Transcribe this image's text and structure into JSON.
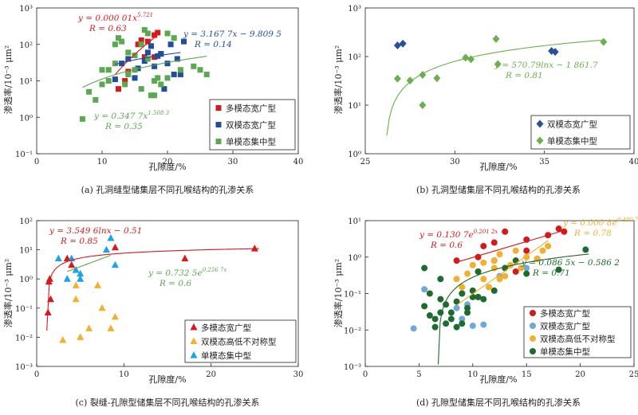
{
  "colors": {
    "red": "#d7191c",
    "blue": "#1f4e9c",
    "green": "#5aa84f",
    "diamond_blue": "#2a4f9a",
    "diamond_green": "#6ab04c",
    "orange": "#f2b02e",
    "lightblue": "#6fa8dc",
    "cyan": "#1aa3e8",
    "darkgreen": "#1e6b2e"
  },
  "chart_data": [
    {
      "id": "a",
      "type": "scatter",
      "caption": "(a) 孔洞缝型储集层不同孔喉结构的孔渗关系",
      "xlabel": "孔隙度/%",
      "ylabel": "渗透率/10⁻³ μm²",
      "xlim": [
        0,
        40
      ],
      "ylim_log10": [
        -1,
        3
      ],
      "x_ticks": [
        "0",
        "10",
        "20",
        "30",
        "40"
      ],
      "y_ticks": [
        "10⁻¹",
        "10⁰",
        "10¹",
        "10²",
        "10³"
      ],
      "legend_position": "bottom-right",
      "series": [
        {
          "name": "多模态宽广型",
          "marker": "square",
          "color_key": "red",
          "points": [
            [
              12.5,
              6
            ],
            [
              13.5,
              10
            ],
            [
              14,
              18
            ],
            [
              15.5,
              100
            ],
            [
              16,
              130
            ],
            [
              17,
              120
            ],
            [
              18,
              180
            ],
            [
              18.5,
              210
            ],
            [
              18,
              45
            ],
            [
              19,
              55
            ],
            [
              16.5,
              45
            ]
          ]
        },
        {
          "name": "双模态宽广型",
          "marker": "square",
          "color_key": "blue",
          "points": [
            [
              12,
              11
            ],
            [
              13,
              30
            ],
            [
              14,
              40
            ],
            [
              15,
              12
            ],
            [
              15.5,
              22
            ],
            [
              16.5,
              35
            ],
            [
              17,
              60
            ],
            [
              17.5,
              90
            ],
            [
              18,
              25
            ],
            [
              18.5,
              48
            ],
            [
              19,
              55
            ],
            [
              19.5,
              6
            ],
            [
              20,
              30
            ],
            [
              20.5,
              100
            ],
            [
              21,
              15
            ],
            [
              21.5,
              40
            ],
            [
              22,
              15
            ],
            [
              22.5,
              120
            ]
          ]
        },
        {
          "name": "单模态集中型",
          "marker": "square",
          "color_key": "green",
          "points": [
            [
              7,
              0.9
            ],
            [
              8,
              5
            ],
            [
              9,
              3
            ],
            [
              10,
              8
            ],
            [
              10,
              20
            ],
            [
              11,
              10
            ],
            [
              11,
              20
            ],
            [
              12,
              30
            ],
            [
              12,
              100
            ],
            [
              12.5,
              150
            ],
            [
              13,
              120
            ],
            [
              13.5,
              8
            ],
            [
              14,
              15
            ],
            [
              14,
              60
            ],
            [
              15,
              20
            ],
            [
              15,
              50
            ],
            [
              16,
              6
            ],
            [
              16,
              100
            ],
            [
              16.5,
              250
            ],
            [
              17,
              200
            ],
            [
              17,
              40
            ],
            [
              17.5,
              4
            ],
            [
              18,
              4
            ],
            [
              18,
              10
            ],
            [
              18.5,
              12
            ],
            [
              19,
              8
            ],
            [
              20,
              12
            ],
            [
              20,
              200
            ],
            [
              21,
              150
            ],
            [
              22,
              20
            ],
            [
              24,
              25
            ],
            [
              25,
              20
            ],
            [
              26,
              15
            ]
          ]
        }
      ],
      "fits": [
        {
          "color_key": "red",
          "equation": "y = 0.000 01x^5.721",
          "r_text": "R = 0.63",
          "formula": "power",
          "a": 1e-05,
          "b": 5.721,
          "x_range": [
            12,
            18
          ]
        },
        {
          "color_key": "blue",
          "equation": "y = 3.167 7x − 9.809 5",
          "r_text": "R = 0.14",
          "formula": "linear",
          "a": 3.1677,
          "b": -9.8095,
          "x_range": [
            12,
            22
          ]
        },
        {
          "color_key": "green",
          "equation": "y = 0.347 7x^1.508 3",
          "r_text": "R = 0.35",
          "formula": "power",
          "a": 0.3477,
          "b": 1.5083,
          "x_range": [
            7,
            26
          ]
        }
      ]
    },
    {
      "id": "b",
      "type": "scatter",
      "caption": "(b) 孔洞型储集层不同孔喉结构的孔渗关系",
      "xlabel": "孔隙度/%",
      "ylabel": "渗透率/10⁻³ μm²",
      "xlim": [
        25,
        40
      ],
      "ylim_log10": [
        0,
        3
      ],
      "x_ticks": [
        "25",
        "30",
        "35",
        "40"
      ],
      "y_ticks": [
        "10⁰",
        "10¹",
        "10²",
        "10³"
      ],
      "legend_position": "bottom-right",
      "series": [
        {
          "name": "双模态宽广型",
          "marker": "diamond",
          "color_key": "diamond_blue",
          "points": [
            [
              26.8,
              170
            ],
            [
              27.1,
              185
            ],
            [
              35.4,
              130
            ],
            [
              35.6,
              125
            ]
          ]
        },
        {
          "name": "单模态集中型",
          "marker": "diamond",
          "color_key": "diamond_green",
          "points": [
            [
              26.8,
              35
            ],
            [
              27.5,
              32
            ],
            [
              28.2,
              42
            ],
            [
              28.2,
              10
            ],
            [
              29,
              36
            ],
            [
              30.6,
              95
            ],
            [
              30.9,
              88
            ],
            [
              32.3,
              230
            ],
            [
              32.4,
              70
            ],
            [
              38.3,
              200
            ]
          ]
        }
      ],
      "fits": [
        {
          "color_key": "diamond_green",
          "equation": "y = 570.79lnx − 1 861.7",
          "r_text": "R = 0.81",
          "formula": "log",
          "a": 570.79,
          "b": -1861.7,
          "x_range": [
            26.2,
            38.3
          ]
        }
      ]
    },
    {
      "id": "c",
      "type": "scatter",
      "caption": "(c) 裂缝-孔隙型储集层不同孔喉结构的孔渗关系",
      "xlabel": "孔隙度/%",
      "ylabel": "渗透率/10⁻³ μm²",
      "xlim": [
        0,
        30
      ],
      "ylim_log10": [
        -3,
        2
      ],
      "x_ticks": [
        "0",
        "10",
        "20",
        "30"
      ],
      "y_ticks": [
        "10⁻³",
        "10⁻²",
        "10⁻¹",
        "10⁰",
        "10¹",
        "10²"
      ],
      "legend_position": "bottom-right",
      "series": [
        {
          "name": "多模态宽广型",
          "marker": "triangle",
          "color_key": "red",
          "points": [
            [
              1.3,
              0.07
            ],
            [
              1.4,
              0.8
            ],
            [
              1.5,
              1
            ],
            [
              1.6,
              0.2
            ],
            [
              3.5,
              5
            ],
            [
              4,
              3
            ],
            [
              9,
              12
            ],
            [
              17,
              5
            ],
            [
              25,
              11
            ]
          ]
        },
        {
          "name": "双模态高低不对称型",
          "marker": "triangle",
          "color_key": "orange",
          "points": [
            [
              3,
              0.008
            ],
            [
              4.5,
              0.2
            ],
            [
              4.5,
              0.6
            ],
            [
              5,
              0.01
            ],
            [
              6,
              0.02
            ],
            [
              7,
              0.6
            ],
            [
              7.5,
              0.1
            ],
            [
              8.5,
              0.02
            ],
            [
              9,
              0.05
            ]
          ]
        },
        {
          "name": "单模态集中型",
          "marker": "triangle",
          "color_key": "cyan",
          "points": [
            [
              2.5,
              5
            ],
            [
              3.5,
              1
            ],
            [
              4,
              5
            ],
            [
              4.5,
              2
            ],
            [
              5,
              1
            ],
            [
              5,
              1.5
            ],
            [
              8,
              10
            ],
            [
              8.5,
              25
            ],
            [
              9,
              3
            ]
          ]
        }
      ],
      "fits": [
        {
          "color_key": "red",
          "equation": "y = 3.549 6lnx − 0.51",
          "r_text": "R = 0.85",
          "formula": "log",
          "a": 3.5496,
          "b": -0.51,
          "x_range": [
            1.16,
            25.5
          ]
        },
        {
          "color_key": "green",
          "equation": "y = 0.732 5e^0.256 7x",
          "r_text": "R = 0.6",
          "formula": "exp",
          "a": 0.7325,
          "b": 0.2567,
          "x_range": [
            3.5,
            8.5
          ]
        }
      ]
    },
    {
      "id": "d",
      "type": "scatter",
      "caption": "(d) 孔隙型储集层不同孔喉结构的孔渗关系",
      "xlabel": "孔隙度/%",
      "ylabel": "渗透率/10⁻³ μm²",
      "xlim": [
        0,
        25
      ],
      "ylim_log10": [
        -3,
        1
      ],
      "x_ticks": [
        "0",
        "5",
        "10",
        "15",
        "20",
        "25"
      ],
      "y_ticks": [
        "10⁻³",
        "10⁻²",
        "10⁻¹",
        "10⁰",
        "10¹"
      ],
      "legend_position": "bottom-right",
      "series": [
        {
          "name": "多模态宽广型",
          "marker": "circle",
          "color_key": "red",
          "points": [
            [
              8.5,
              0.8
            ],
            [
              10.5,
              1
            ],
            [
              11,
              2
            ],
            [
              12,
              2.5
            ],
            [
              12,
              0.8
            ],
            [
              13,
              5
            ],
            [
              14,
              0.4
            ],
            [
              15,
              3
            ],
            [
              15,
              1.5
            ],
            [
              17,
              4
            ],
            [
              18,
              6
            ],
            [
              18.5,
              5
            ]
          ]
        },
        {
          "name": "双模态宽广型",
          "marker": "circle",
          "color_key": "lightblue",
          "points": [
            [
              4.5,
              0.011
            ],
            [
              5.5,
              0.13
            ],
            [
              8.5,
              0.04
            ],
            [
              9,
              0.1
            ],
            [
              9,
              0.02
            ],
            [
              9.5,
              0.05
            ],
            [
              10,
              0.013
            ],
            [
              10.5,
              0.08
            ],
            [
              11,
              0.014
            ],
            [
              12.5,
              0.3
            ],
            [
              15,
              0.5
            ],
            [
              16,
              0.9
            ]
          ]
        },
        {
          "name": "双模态高低不对称型",
          "marker": "circle",
          "color_key": "orange",
          "points": [
            [
              8.5,
              0.25
            ],
            [
              9,
              0.15
            ],
            [
              9.5,
              0.35
            ],
            [
              10,
              0.6
            ],
            [
              10.5,
              0.4
            ],
            [
              11,
              0.25
            ],
            [
              11,
              0.7
            ],
            [
              11.5,
              0.15
            ],
            [
              12,
              0.5
            ],
            [
              12,
              0.8
            ],
            [
              12.5,
              1.2
            ],
            [
              12.5,
              0.25
            ],
            [
              13,
              0.3
            ],
            [
              13.5,
              0.6
            ],
            [
              14,
              0.8
            ],
            [
              14,
              1.5
            ],
            [
              14.5,
              0.5
            ],
            [
              15,
              1
            ],
            [
              16,
              0.9
            ],
            [
              16.5,
              1.5
            ],
            [
              17,
              2
            ]
          ]
        },
        {
          "name": "单模态集中型",
          "marker": "circle",
          "color_key": "darkgreen",
          "points": [
            [
              5.5,
              0.5
            ],
            [
              5.5,
              0.045
            ],
            [
              6,
              0.1
            ],
            [
              6,
              0.025
            ],
            [
              6.5,
              0.02
            ],
            [
              6.5,
              0.012
            ],
            [
              7,
              0.25
            ],
            [
              7,
              0.07
            ],
            [
              7,
              0.03
            ],
            [
              7.5,
              0.05
            ],
            [
              7.5,
              0.015
            ],
            [
              8,
              0.02
            ],
            [
              8,
              0.03
            ],
            [
              8.5,
              0.012
            ],
            [
              8.5,
              0.06
            ],
            [
              9,
              0.1
            ],
            [
              9,
              0.015
            ],
            [
              9.5,
              0.03
            ],
            [
              9.5,
              0.04
            ],
            [
              10,
              0.08
            ],
            [
              10,
              0.12
            ],
            [
              10.5,
              0.08
            ],
            [
              10.5,
              0.4
            ],
            [
              11,
              0.07
            ],
            [
              12,
              0.12
            ],
            [
              13,
              0.5
            ],
            [
              14,
              0.8
            ],
            [
              15,
              0.35
            ],
            [
              18,
              0.45
            ],
            [
              20.5,
              1.6
            ]
          ]
        }
      ],
      "fits": [
        {
          "color_key": "red",
          "equation": "y = 0.130 7e^0.201 2x",
          "r_text": "R = 0.6",
          "formula": "exp",
          "a": 0.1307,
          "b": 0.2012,
          "x_range": [
            8.5,
            18.5
          ]
        },
        {
          "color_key": "orange",
          "equation": "y = 0.000 8e^0.480 7x",
          "r_text": "R = 0.78",
          "formula": "exp",
          "a": 0.0008,
          "b": 0.4807,
          "x_range": [
            8.5,
            17
          ]
        },
        {
          "color_key": "darkgreen",
          "equation": "y = 0.086 5x − 0.586 2",
          "r_text": "R = 0.71",
          "formula": "linear",
          "a": 0.0865,
          "b": -0.5862,
          "x_range": [
            6.79,
            20.8
          ]
        }
      ]
    }
  ]
}
